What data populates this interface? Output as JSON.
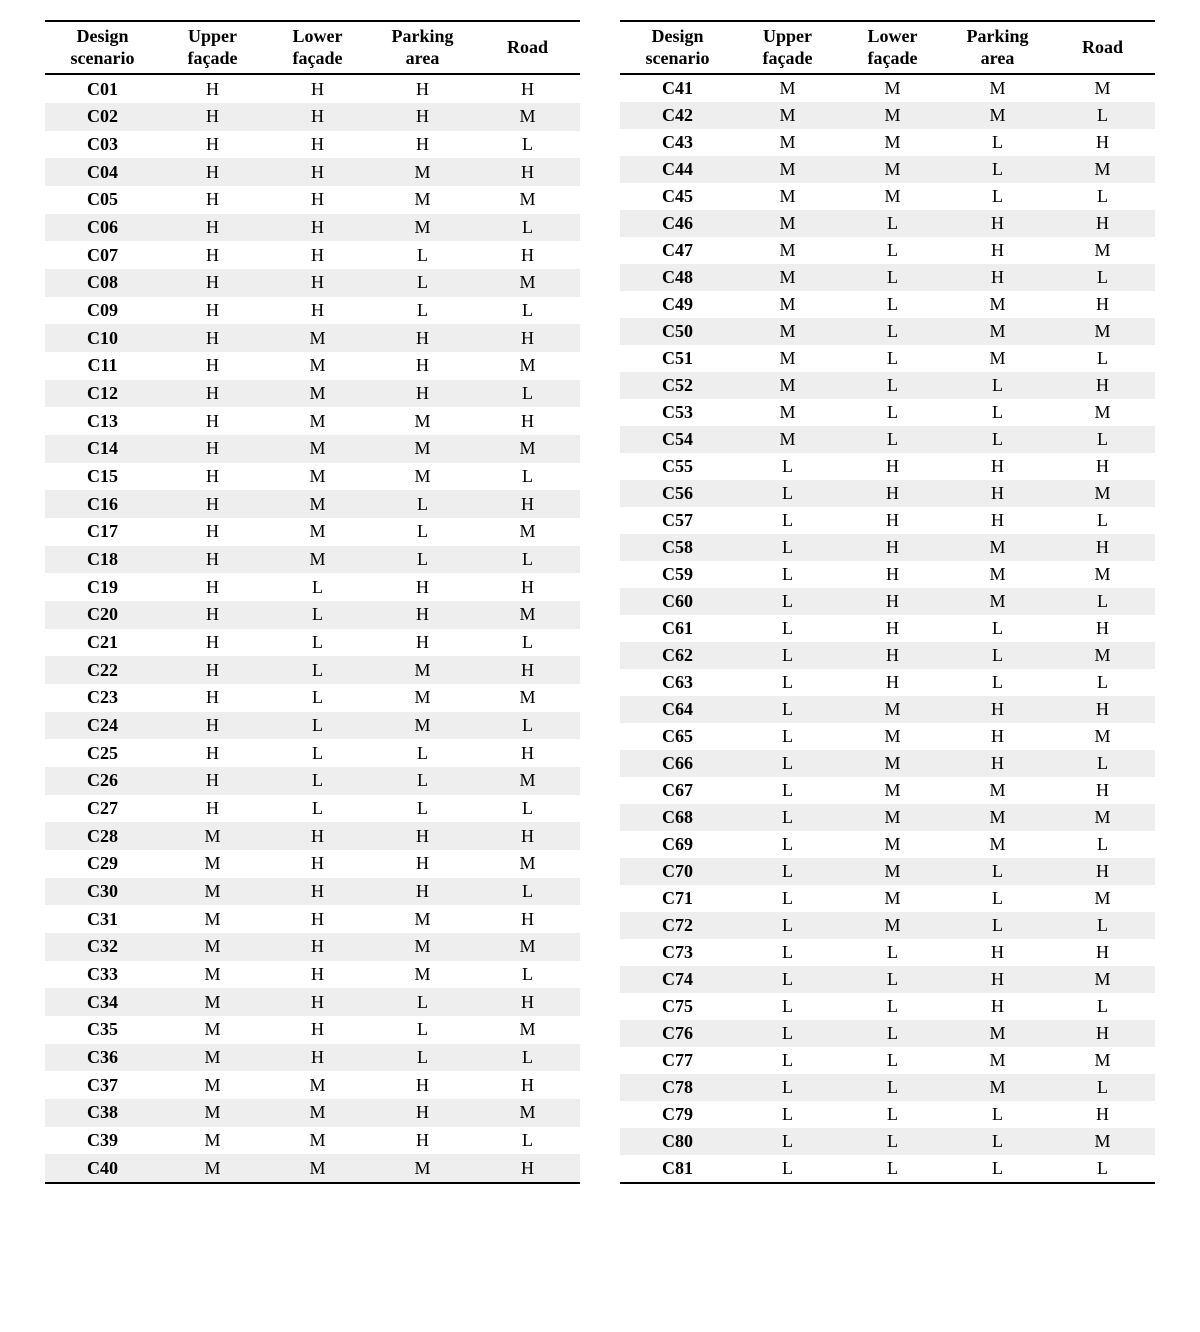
{
  "columns": [
    {
      "key": "scenario",
      "label_line1": "Design",
      "label_line2": "scenario"
    },
    {
      "key": "upper",
      "label_line1": "Upper",
      "label_line2": "façade"
    },
    {
      "key": "lower",
      "label_line1": "Lower",
      "label_line2": "façade"
    },
    {
      "key": "parking",
      "label_line1": "Parking",
      "label_line2": "area"
    },
    {
      "key": "road",
      "label_line1": "Road",
      "label_line2": ""
    }
  ],
  "styling": {
    "row_alt_color": "#eeeeee",
    "row_plain_color": "#ffffff",
    "border_color": "#000000",
    "font_family": "Times New Roman",
    "header_fontsize_pt": 14,
    "body_fontsize_pt": 14
  },
  "left_table": {
    "rows": [
      {
        "scenario": "C01",
        "upper": "H",
        "lower": "H",
        "parking": "H",
        "road": "H"
      },
      {
        "scenario": "C02",
        "upper": "H",
        "lower": "H",
        "parking": "H",
        "road": "M"
      },
      {
        "scenario": "C03",
        "upper": "H",
        "lower": "H",
        "parking": "H",
        "road": "L"
      },
      {
        "scenario": "C04",
        "upper": "H",
        "lower": "H",
        "parking": "M",
        "road": "H"
      },
      {
        "scenario": "C05",
        "upper": "H",
        "lower": "H",
        "parking": "M",
        "road": "M"
      },
      {
        "scenario": "C06",
        "upper": "H",
        "lower": "H",
        "parking": "M",
        "road": "L"
      },
      {
        "scenario": "C07",
        "upper": "H",
        "lower": "H",
        "parking": "L",
        "road": "H"
      },
      {
        "scenario": "C08",
        "upper": "H",
        "lower": "H",
        "parking": "L",
        "road": "M"
      },
      {
        "scenario": "C09",
        "upper": "H",
        "lower": "H",
        "parking": "L",
        "road": "L"
      },
      {
        "scenario": "C10",
        "upper": "H",
        "lower": "M",
        "parking": "H",
        "road": "H"
      },
      {
        "scenario": "C11",
        "upper": "H",
        "lower": "M",
        "parking": "H",
        "road": "M"
      },
      {
        "scenario": "C12",
        "upper": "H",
        "lower": "M",
        "parking": "H",
        "road": "L"
      },
      {
        "scenario": "C13",
        "upper": "H",
        "lower": "M",
        "parking": "M",
        "road": "H"
      },
      {
        "scenario": "C14",
        "upper": "H",
        "lower": "M",
        "parking": "M",
        "road": "M"
      },
      {
        "scenario": "C15",
        "upper": "H",
        "lower": "M",
        "parking": "M",
        "road": "L"
      },
      {
        "scenario": "C16",
        "upper": "H",
        "lower": "M",
        "parking": "L",
        "road": "H"
      },
      {
        "scenario": "C17",
        "upper": "H",
        "lower": "M",
        "parking": "L",
        "road": "M"
      },
      {
        "scenario": "C18",
        "upper": "H",
        "lower": "M",
        "parking": "L",
        "road": "L"
      },
      {
        "scenario": "C19",
        "upper": "H",
        "lower": "L",
        "parking": "H",
        "road": "H"
      },
      {
        "scenario": "C20",
        "upper": "H",
        "lower": "L",
        "parking": "H",
        "road": "M"
      },
      {
        "scenario": "C21",
        "upper": "H",
        "lower": "L",
        "parking": "H",
        "road": "L"
      },
      {
        "scenario": "C22",
        "upper": "H",
        "lower": "L",
        "parking": "M",
        "road": "H"
      },
      {
        "scenario": "C23",
        "upper": "H",
        "lower": "L",
        "parking": "M",
        "road": "M"
      },
      {
        "scenario": "C24",
        "upper": "H",
        "lower": "L",
        "parking": "M",
        "road": "L"
      },
      {
        "scenario": "C25",
        "upper": "H",
        "lower": "L",
        "parking": "L",
        "road": "H"
      },
      {
        "scenario": "C26",
        "upper": "H",
        "lower": "L",
        "parking": "L",
        "road": "M"
      },
      {
        "scenario": "C27",
        "upper": "H",
        "lower": "L",
        "parking": "L",
        "road": "L"
      },
      {
        "scenario": "C28",
        "upper": "M",
        "lower": "H",
        "parking": "H",
        "road": "H"
      },
      {
        "scenario": "C29",
        "upper": "M",
        "lower": "H",
        "parking": "H",
        "road": "M"
      },
      {
        "scenario": "C30",
        "upper": "M",
        "lower": "H",
        "parking": "H",
        "road": "L"
      },
      {
        "scenario": "C31",
        "upper": "M",
        "lower": "H",
        "parking": "M",
        "road": "H"
      },
      {
        "scenario": "C32",
        "upper": "M",
        "lower": "H",
        "parking": "M",
        "road": "M"
      },
      {
        "scenario": "C33",
        "upper": "M",
        "lower": "H",
        "parking": "M",
        "road": "L"
      },
      {
        "scenario": "C34",
        "upper": "M",
        "lower": "H",
        "parking": "L",
        "road": "H"
      },
      {
        "scenario": "C35",
        "upper": "M",
        "lower": "H",
        "parking": "L",
        "road": "M"
      },
      {
        "scenario": "C36",
        "upper": "M",
        "lower": "H",
        "parking": "L",
        "road": "L"
      },
      {
        "scenario": "C37",
        "upper": "M",
        "lower": "M",
        "parking": "H",
        "road": "H"
      },
      {
        "scenario": "C38",
        "upper": "M",
        "lower": "M",
        "parking": "H",
        "road": "M"
      },
      {
        "scenario": "C39",
        "upper": "M",
        "lower": "M",
        "parking": "H",
        "road": "L"
      },
      {
        "scenario": "C40",
        "upper": "M",
        "lower": "M",
        "parking": "M",
        "road": "H"
      }
    ]
  },
  "right_table": {
    "rows": [
      {
        "scenario": "C41",
        "upper": "M",
        "lower": "M",
        "parking": "M",
        "road": "M"
      },
      {
        "scenario": "C42",
        "upper": "M",
        "lower": "M",
        "parking": "M",
        "road": "L"
      },
      {
        "scenario": "C43",
        "upper": "M",
        "lower": "M",
        "parking": "L",
        "road": "H"
      },
      {
        "scenario": "C44",
        "upper": "M",
        "lower": "M",
        "parking": "L",
        "road": "M"
      },
      {
        "scenario": "C45",
        "upper": "M",
        "lower": "M",
        "parking": "L",
        "road": "L"
      },
      {
        "scenario": "C46",
        "upper": "M",
        "lower": "L",
        "parking": "H",
        "road": "H"
      },
      {
        "scenario": "C47",
        "upper": "M",
        "lower": "L",
        "parking": "H",
        "road": "M"
      },
      {
        "scenario": "C48",
        "upper": "M",
        "lower": "L",
        "parking": "H",
        "road": "L"
      },
      {
        "scenario": "C49",
        "upper": "M",
        "lower": "L",
        "parking": "M",
        "road": "H"
      },
      {
        "scenario": "C50",
        "upper": "M",
        "lower": "L",
        "parking": "M",
        "road": "M"
      },
      {
        "scenario": "C51",
        "upper": "M",
        "lower": "L",
        "parking": "M",
        "road": "L"
      },
      {
        "scenario": "C52",
        "upper": "M",
        "lower": "L",
        "parking": "L",
        "road": "H"
      },
      {
        "scenario": "C53",
        "upper": "M",
        "lower": "L",
        "parking": "L",
        "road": "M"
      },
      {
        "scenario": "C54",
        "upper": "M",
        "lower": "L",
        "parking": "L",
        "road": "L"
      },
      {
        "scenario": "C55",
        "upper": "L",
        "lower": "H",
        "parking": "H",
        "road": "H"
      },
      {
        "scenario": "C56",
        "upper": "L",
        "lower": "H",
        "parking": "H",
        "road": "M"
      },
      {
        "scenario": "C57",
        "upper": "L",
        "lower": "H",
        "parking": "H",
        "road": "L"
      },
      {
        "scenario": "C58",
        "upper": "L",
        "lower": "H",
        "parking": "M",
        "road": "H"
      },
      {
        "scenario": "C59",
        "upper": "L",
        "lower": "H",
        "parking": "M",
        "road": "M"
      },
      {
        "scenario": "C60",
        "upper": "L",
        "lower": "H",
        "parking": "M",
        "road": "L"
      },
      {
        "scenario": "C61",
        "upper": "L",
        "lower": "H",
        "parking": "L",
        "road": "H"
      },
      {
        "scenario": "C62",
        "upper": "L",
        "lower": "H",
        "parking": "L",
        "road": "M"
      },
      {
        "scenario": "C63",
        "upper": "L",
        "lower": "H",
        "parking": "L",
        "road": "L"
      },
      {
        "scenario": "C64",
        "upper": "L",
        "lower": "M",
        "parking": "H",
        "road": "H"
      },
      {
        "scenario": "C65",
        "upper": "L",
        "lower": "M",
        "parking": "H",
        "road": "M"
      },
      {
        "scenario": "C66",
        "upper": "L",
        "lower": "M",
        "parking": "H",
        "road": "L"
      },
      {
        "scenario": "C67",
        "upper": "L",
        "lower": "M",
        "parking": "M",
        "road": "H"
      },
      {
        "scenario": "C68",
        "upper": "L",
        "lower": "M",
        "parking": "M",
        "road": "M"
      },
      {
        "scenario": "C69",
        "upper": "L",
        "lower": "M",
        "parking": "M",
        "road": "L"
      },
      {
        "scenario": "C70",
        "upper": "L",
        "lower": "M",
        "parking": "L",
        "road": "H"
      },
      {
        "scenario": "C71",
        "upper": "L",
        "lower": "M",
        "parking": "L",
        "road": "M"
      },
      {
        "scenario": "C72",
        "upper": "L",
        "lower": "M",
        "parking": "L",
        "road": "L"
      },
      {
        "scenario": "C73",
        "upper": "L",
        "lower": "L",
        "parking": "H",
        "road": "H"
      },
      {
        "scenario": "C74",
        "upper": "L",
        "lower": "L",
        "parking": "H",
        "road": "M"
      },
      {
        "scenario": "C75",
        "upper": "L",
        "lower": "L",
        "parking": "H",
        "road": "L"
      },
      {
        "scenario": "C76",
        "upper": "L",
        "lower": "L",
        "parking": "M",
        "road": "H"
      },
      {
        "scenario": "C77",
        "upper": "L",
        "lower": "L",
        "parking": "M",
        "road": "M"
      },
      {
        "scenario": "C78",
        "upper": "L",
        "lower": "L",
        "parking": "M",
        "road": "L"
      },
      {
        "scenario": "C79",
        "upper": "L",
        "lower": "L",
        "parking": "L",
        "road": "H"
      },
      {
        "scenario": "C80",
        "upper": "L",
        "lower": "L",
        "parking": "L",
        "road": "M"
      },
      {
        "scenario": "C81",
        "upper": "L",
        "lower": "L",
        "parking": "L",
        "road": "L"
      }
    ]
  }
}
